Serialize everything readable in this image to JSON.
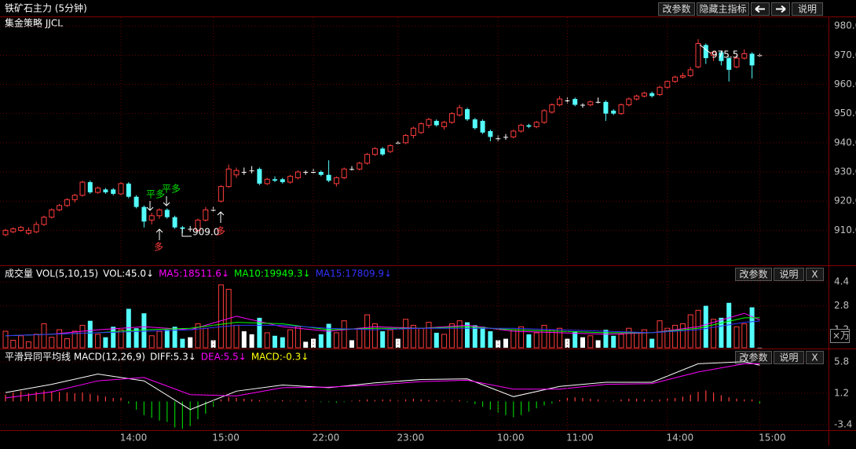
{
  "window": {
    "title": "铁矿石主力 (5分钟)",
    "buttons": [
      "改参数",
      "隐藏主指标",
      "说明"
    ]
  },
  "chart_data": [
    {
      "type": "candlestick",
      "title": "集金策略 JJCL",
      "up_color": "#ff3c3c",
      "down_color": "#54fcfc",
      "flat_color": "#ffffff",
      "open": [
        908.5,
        909.5,
        910,
        909,
        909.5,
        912,
        914.5,
        917,
        918.5,
        920.5,
        922,
        926.5,
        923,
        924,
        924,
        922.5,
        926,
        921.5,
        918,
        913.5,
        915,
        917,
        914.5,
        911,
        910.5,
        910,
        913.5,
        917,
        920,
        925,
        929,
        930,
        930.5,
        931,
        926,
        927.5,
        927.5,
        926.5,
        928,
        930,
        930,
        930,
        929,
        926,
        928,
        931,
        931,
        933,
        936,
        938,
        937,
        940,
        940,
        942.5,
        943.5,
        946,
        947.5,
        945.5,
        947,
        949.5,
        951.5,
        948,
        947.5,
        944,
        941.5,
        942,
        942,
        944,
        946,
        945.5,
        947,
        950.5,
        953,
        954.5,
        955,
        953,
        953,
        954,
        954,
        951,
        950,
        953,
        955,
        956,
        957,
        956.5,
        959,
        961,
        962.5,
        963,
        966,
        973.5,
        970,
        971,
        969,
        966,
        969,
        970.5,
        970
      ],
      "high": [
        910.5,
        911,
        911.5,
        911,
        913,
        915,
        917.5,
        919,
        921,
        922.5,
        927,
        927,
        925,
        924.5,
        924.5,
        926.5,
        926.5,
        922,
        918.5,
        916,
        917.5,
        917.5,
        915,
        911.5,
        911.5,
        914,
        918,
        918,
        925.5,
        932.5,
        931.5,
        931.5,
        932,
        931.5,
        928,
        928.5,
        928,
        929,
        930.5,
        930.5,
        931,
        930.5,
        934,
        928.5,
        931.5,
        932,
        933.5,
        936.5,
        938.5,
        938.5,
        939.5,
        940.5,
        943,
        945.5,
        947,
        948.5,
        948,
        947.5,
        950.5,
        953,
        952,
        948.5,
        948,
        944.5,
        942.5,
        943,
        944.5,
        946.5,
        946.5,
        947.5,
        951.5,
        953.5,
        956,
        955.5,
        955.5,
        953.5,
        954.5,
        955.5,
        954.5,
        951.5,
        953.5,
        955.5,
        956.5,
        957.5,
        957.5,
        959.5,
        961.5,
        963,
        964,
        966,
        975.5,
        974,
        971.5,
        971.5,
        969.5,
        970,
        972,
        971,
        970.5
      ],
      "low": [
        908,
        909,
        909.5,
        908.5,
        909,
        911.5,
        914,
        916.5,
        918,
        919.5,
        921.5,
        922.5,
        922.5,
        922.5,
        922,
        922,
        921,
        917.5,
        911,
        912,
        914,
        914,
        910.5,
        909,
        909.5,
        909.5,
        913,
        916.5,
        919.5,
        924.5,
        928,
        929,
        929.5,
        925.5,
        925.5,
        926.5,
        926,
        926,
        927.5,
        929,
        929.5,
        928.5,
        926.5,
        925,
        927.5,
        930.5,
        930.5,
        932.5,
        935.5,
        935.5,
        936.5,
        939.5,
        939.5,
        941.5,
        943,
        945,
        945.5,
        944.5,
        946.5,
        949,
        947.5,
        944.5,
        943,
        940.5,
        940.5,
        941,
        941.5,
        943.5,
        945,
        945,
        946.5,
        950,
        952.5,
        953.5,
        952.5,
        952,
        952.5,
        953.5,
        947.5,
        949.5,
        949.5,
        952.5,
        954.5,
        955.5,
        955.5,
        956,
        958.5,
        960.5,
        962,
        962.5,
        965.5,
        967,
        968,
        966.5,
        961,
        965.5,
        968.5,
        962,
        969.5
      ],
      "close": [
        910,
        910.5,
        911,
        910,
        912,
        914.5,
        917,
        918.5,
        920.5,
        922,
        926.5,
        923,
        924.5,
        923,
        922.5,
        926,
        921.5,
        918,
        913,
        915,
        917,
        914.5,
        911,
        910.5,
        910.5,
        913.5,
        917,
        917,
        925,
        931,
        930.5,
        930,
        930.5,
        926,
        927.5,
        927,
        926.5,
        928.5,
        930,
        930,
        930,
        929,
        927,
        928,
        931,
        931,
        933,
        936,
        938,
        936,
        939,
        940,
        942.5,
        945,
        946.5,
        948,
        946,
        947,
        950,
        952,
        948,
        945,
        943.5,
        942,
        941.5,
        942,
        944,
        946,
        945.5,
        947,
        951,
        953,
        955,
        954.5,
        953,
        953,
        954,
        954,
        950,
        950,
        953,
        955,
        956,
        957,
        956,
        959,
        961,
        962.5,
        963,
        965,
        974,
        969,
        971,
        968,
        965,
        969,
        970.5,
        966.5,
        970
      ],
      "ylim": [
        898,
        983
      ],
      "yticks": [
        {
          "value": 980,
          "label": "980.0"
        },
        {
          "value": 970,
          "label": "970.0"
        },
        {
          "value": 960,
          "label": "960.0"
        },
        {
          "value": 950,
          "label": "950.0"
        },
        {
          "value": 940,
          "label": "940.0"
        },
        {
          "value": 930,
          "label": "930.0"
        },
        {
          "value": 920,
          "label": "920.0"
        },
        {
          "value": 910,
          "label": "910.0"
        }
      ],
      "grid": true,
      "annotations": [
        "975.5",
        "909.0",
        "平多",
        "平多",
        "多",
        "多"
      ]
    },
    {
      "type": "volume",
      "title": "成交量 VOL(5,10,15)",
      "readout": "VOL:45.0↓",
      "unit_label": "×万",
      "buttons": [
        "改参数",
        "说明",
        "X"
      ],
      "values": [
        1.1,
        0.5,
        0.8,
        0.4,
        0.9,
        1.6,
        0.7,
        1.2,
        0.6,
        1.1,
        1.5,
        1.8,
        0.9,
        0.7,
        1.4,
        1.2,
        2.6,
        1.3,
        2.3,
        0.8,
        1.1,
        1.2,
        1.4,
        0.6,
        0.7,
        1.6,
        1.3,
        0.5,
        4.2,
        3.9,
        1.5,
        1.1,
        0.9,
        2.0,
        1.0,
        0.8,
        0.7,
        1.2,
        1.4,
        0.4,
        0.6,
        0.9,
        1.6,
        1.0,
        1.8,
        0.5,
        1.3,
        2.2,
        1.6,
        1.1,
        1.2,
        0.6,
        1.9,
        1.5,
        1.3,
        1.7,
        1.0,
        0.9,
        1.6,
        1.8,
        1.7,
        1.5,
        1.4,
        1.1,
        0.5,
        0.6,
        1.2,
        1.4,
        0.9,
        1.0,
        1.5,
        1.2,
        1.3,
        0.6,
        1.1,
        0.7,
        0.8,
        0.5,
        1.2,
        0.8,
        0.9,
        1.3,
        1.0,
        1.2,
        0.6,
        1.8,
        1.3,
        1.5,
        1.6,
        2.2,
        2.5,
        2.8,
        1.9,
        2.0,
        3.0,
        1.4,
        1.6,
        2.7,
        0.0045
      ],
      "series": [
        {
          "name": "MA5:18511.6↓",
          "color": "#ff00ff",
          "x": [
            0,
            6,
            12,
            18,
            24,
            30,
            36,
            42,
            48,
            54,
            60,
            66,
            72,
            78,
            84,
            90,
            96,
            98
          ],
          "values": [
            0.8,
            0.9,
            1.2,
            1.4,
            1.2,
            2.1,
            1.4,
            1.1,
            1.4,
            1.3,
            1.5,
            1.1,
            1.0,
            0.9,
            1.0,
            1.4,
            2.3,
            1.85
          ]
        },
        {
          "name": "MA10:19949.3↓",
          "color": "#00ff00",
          "x": [
            0,
            6,
            12,
            18,
            24,
            30,
            36,
            42,
            48,
            54,
            60,
            66,
            72,
            78,
            84,
            90,
            96,
            98
          ],
          "values": [
            0.8,
            0.9,
            1.0,
            1.2,
            1.3,
            1.7,
            1.6,
            1.2,
            1.3,
            1.3,
            1.4,
            1.2,
            1.1,
            1.0,
            1.0,
            1.3,
            2.0,
            2.0
          ]
        },
        {
          "name": "MA15:17809.9↓",
          "color": "#3232ff",
          "x": [
            0,
            6,
            12,
            18,
            24,
            30,
            36,
            42,
            48,
            54,
            60,
            66,
            72,
            78,
            84,
            90,
            96,
            98
          ],
          "values": [
            0.8,
            0.9,
            1.0,
            1.1,
            1.2,
            1.5,
            1.5,
            1.3,
            1.2,
            1.3,
            1.3,
            1.3,
            1.2,
            1.1,
            1.0,
            1.2,
            1.7,
            1.78
          ]
        }
      ],
      "ylim": [
        0,
        5.4
      ],
      "yticks": [
        4.4,
        2.8,
        1.2
      ],
      "grid": true
    },
    {
      "type": "macd",
      "title": "平滑异同平均线 MACD(12,26,9)",
      "buttons": [
        "改参数",
        "说明",
        "X"
      ],
      "histogram": {
        "name": "MACD:-0.3↓",
        "color": "#ffff00",
        "up_color": "#ff3c3c",
        "down_color": "#00c800",
        "values": [
          1.0,
          1.3,
          1.5,
          1.2,
          1.4,
          1.6,
          1.5,
          1.4,
          1.3,
          1.2,
          1.3,
          1.1,
          0.9,
          0.7,
          0.5,
          0.6,
          -0.3,
          -1.2,
          -2.0,
          -2.4,
          -2.8,
          -3.0,
          -3.8,
          -4.0,
          -3.6,
          -2.6,
          -1.8,
          -0.8,
          0.3,
          0.6,
          0.5,
          0.4,
          0.3,
          0.2,
          0.1,
          0.1,
          0.2,
          0.1,
          0.1,
          0.2,
          0.1,
          -0.1,
          -0.1,
          -0.2,
          -0.1,
          0.1,
          0.2,
          0.3,
          0.2,
          0.3,
          0.3,
          0.2,
          0.3,
          0.4,
          0.3,
          0.2,
          0.2,
          0.1,
          0.1,
          0.2,
          -0.1,
          -0.4,
          -0.8,
          -1.2,
          -1.6,
          -2.0,
          -2.3,
          -2.0,
          -1.5,
          -1.0,
          -0.6,
          -0.3,
          0.2,
          0.5,
          0.6,
          0.5,
          0.4,
          0.3,
          0.1,
          0.1,
          0.3,
          0.4,
          0.4,
          0.3,
          0.2,
          0.3,
          0.4,
          0.5,
          0.7,
          1.0,
          1.4,
          1.6,
          1.3,
          0.9,
          0.6,
          0.4,
          0.3,
          0.3,
          -0.3
        ]
      },
      "series": [
        {
          "name": "DIFF:5.3↓",
          "color": "#ffffff",
          "x": [
            0,
            6,
            12,
            18,
            24,
            30,
            36,
            42,
            48,
            54,
            60,
            66,
            72,
            78,
            84,
            90,
            96,
            98
          ],
          "values": [
            1.3,
            2.5,
            4.0,
            3.0,
            -1.2,
            1.5,
            2.4,
            2.0,
            2.7,
            3.2,
            3.3,
            0.7,
            2.2,
            2.8,
            2.8,
            5.5,
            5.8,
            5.3
          ]
        },
        {
          "name": "DEA:5.5↓",
          "color": "#ff00ff",
          "x": [
            0,
            6,
            12,
            18,
            24,
            30,
            36,
            42,
            48,
            54,
            60,
            66,
            72,
            78,
            84,
            90,
            96,
            98
          ],
          "values": [
            0.5,
            1.4,
            3.0,
            3.5,
            1.0,
            0.8,
            2.0,
            2.1,
            2.4,
            2.9,
            3.1,
            1.8,
            1.8,
            2.5,
            2.6,
            4.3,
            5.5,
            5.5
          ]
        }
      ],
      "ylim": [
        -4.2,
        7.5
      ],
      "yticks": [
        5.8,
        1.2,
        -3.4
      ],
      "grid": true,
      "xticks": [
        {
          "value": 15,
          "label": "14:00"
        },
        {
          "value": 27,
          "label": "15:00"
        },
        {
          "value": 40,
          "label": "22:00"
        },
        {
          "value": 51,
          "label": "23:00"
        },
        {
          "value": 64,
          "label": "10:00"
        },
        {
          "value": 73,
          "label": "11:00"
        },
        {
          "value": 86,
          "label": "14:00"
        },
        {
          "value": 98,
          "label": "15:00"
        }
      ]
    }
  ]
}
